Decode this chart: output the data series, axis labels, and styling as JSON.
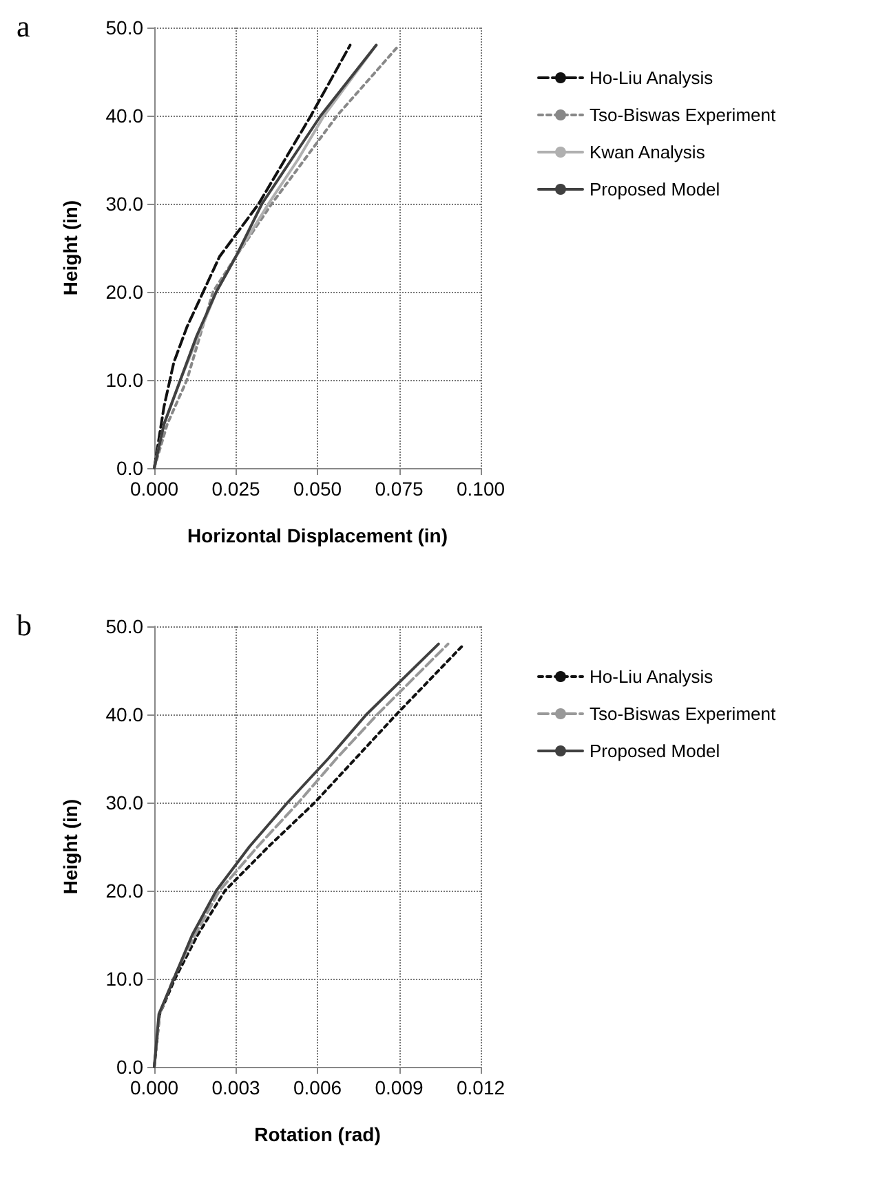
{
  "chart_data": [
    {
      "type": "line",
      "xlabel": "Horizontal Displacement (in)",
      "ylabel": "Height (in)",
      "annotations": [
        "a"
      ],
      "xlim": [
        0,
        0.1
      ],
      "xticks": [
        {
          "value": 0,
          "label": "0.000"
        },
        {
          "value": 0.025,
          "label": "0.025"
        },
        {
          "value": 0.05,
          "label": "0.050"
        },
        {
          "value": 0.075,
          "label": "0.075"
        },
        {
          "value": 0.1,
          "label": "0.100"
        }
      ],
      "ylim": [
        0,
        50
      ],
      "yticks": [
        {
          "value": 0,
          "label": "0.0"
        },
        {
          "value": 10,
          "label": "10.0"
        },
        {
          "value": 20,
          "label": "20.0"
        },
        {
          "value": 30,
          "label": "30.0"
        },
        {
          "value": 40,
          "label": "40.0"
        },
        {
          "value": 50,
          "label": "50.0"
        }
      ],
      "grid": true,
      "legend": "right",
      "marker": "none",
      "series": [
        {
          "name": "Ho-Liu Analysis",
          "color": "#111111",
          "line_style": "dashed",
          "x": [
            0,
            0.003,
            0.006,
            0.01,
            0.015,
            0.02,
            0.032,
            0.04,
            0.048,
            0.06
          ],
          "values": [
            0,
            7,
            12,
            16,
            20,
            24,
            30,
            35,
            40,
            48
          ]
        },
        {
          "name": "Tso-Biswas Experiment",
          "color": "#888888",
          "line_style": "dotted",
          "x": [
            0,
            0.004,
            0.01,
            0.018,
            0.025,
            0.036,
            0.046,
            0.056,
            0.075
          ],
          "values": [
            0,
            5,
            10,
            20,
            24,
            30,
            35,
            40,
            48
          ]
        },
        {
          "name": "Kwan Analysis",
          "color": "#b0b0b0",
          "line_style": "solid",
          "x": [
            0,
            0.003,
            0.008,
            0.019,
            0.025,
            0.035,
            0.044,
            0.052,
            0.068
          ],
          "values": [
            0,
            5,
            10,
            20,
            24,
            30,
            35,
            40,
            48
          ]
        },
        {
          "name": "Proposed Model",
          "color": "#404040",
          "line_style": "solid",
          "x": [
            0,
            0.003,
            0.008,
            0.013,
            0.019,
            0.025,
            0.033,
            0.042,
            0.051,
            0.068
          ],
          "values": [
            0,
            5,
            10,
            15,
            20,
            24,
            30,
            35,
            40,
            48
          ]
        }
      ]
    },
    {
      "type": "line",
      "xlabel": "Rotation (rad)",
      "ylabel": "Height (in)",
      "annotations": [
        "b"
      ],
      "xlim": [
        0,
        0.012
      ],
      "xticks": [
        {
          "value": 0,
          "label": "0.000"
        },
        {
          "value": 0.003,
          "label": "0.003"
        },
        {
          "value": 0.006,
          "label": "0.006"
        },
        {
          "value": 0.009,
          "label": "0.009"
        },
        {
          "value": 0.012,
          "label": "0.012"
        }
      ],
      "ylim": [
        0,
        50
      ],
      "yticks": [
        {
          "value": 0,
          "label": "0.0"
        },
        {
          "value": 10,
          "label": "10.0"
        },
        {
          "value": 20,
          "label": "20.0"
        },
        {
          "value": 30,
          "label": "30.0"
        },
        {
          "value": 40,
          "label": "40.0"
        },
        {
          "value": 50,
          "label": "50.0"
        }
      ],
      "grid": true,
      "legend": "right",
      "marker": "none",
      "series": [
        {
          "name": "Ho-Liu Analysis",
          "color": "#111111",
          "line_style": "dotted",
          "x": [
            0,
            0.0002,
            0.00076,
            0.0016,
            0.0026,
            0.0042,
            0.0059,
            0.0074,
            0.0089,
            0.0113
          ],
          "values": [
            0,
            6,
            10,
            15,
            20,
            25,
            30,
            35,
            40,
            47.7
          ]
        },
        {
          "name": "Tso-Biswas Experiment",
          "color": "#999999",
          "line_style": "dashed",
          "x": [
            0,
            0.0002,
            0.0007,
            0.0015,
            0.0024,
            0.0038,
            0.0053,
            0.0067,
            0.0082,
            0.0108
          ],
          "values": [
            0,
            6,
            10,
            15,
            20,
            25,
            30,
            35,
            40,
            48
          ]
        },
        {
          "name": "Proposed Model",
          "color": "#404040",
          "line_style": "solid",
          "x": [
            0,
            0.00017,
            0.00072,
            0.0014,
            0.00228,
            0.0035,
            0.0049,
            0.0064,
            0.0078,
            0.01045
          ],
          "values": [
            0,
            6,
            10,
            15,
            20,
            25,
            30,
            35,
            40,
            48
          ]
        }
      ]
    }
  ]
}
